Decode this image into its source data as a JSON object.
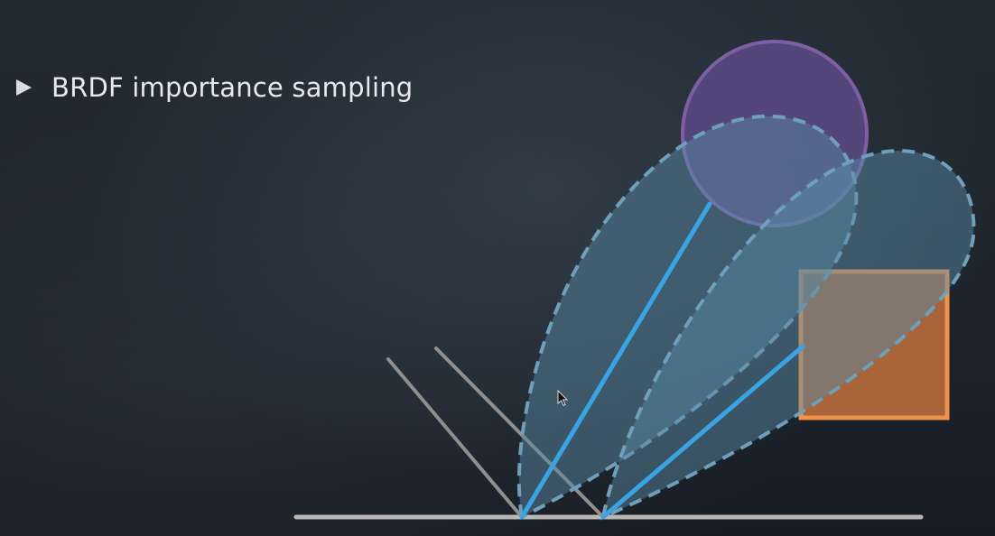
{
  "slide": {
    "bullet": {
      "text": "BRDF importance sampling",
      "icon": "triangle-bullet-icon"
    }
  },
  "diagram": {
    "icons": [
      "cursor-icon"
    ],
    "colors": {
      "surface": "#b8b8b6",
      "reflection_lines": "#8f8f8d",
      "sample_rays": "#3aa3e3",
      "lobe_fill": "#5a8aa6",
      "lobe_stroke": "#6f9fbb",
      "light_circle_fill": "#5b4a86",
      "light_circle_stroke": "#7e5fa6",
      "light_square_fill": "#b1683a",
      "light_square_stroke": "#f0934a"
    }
  }
}
